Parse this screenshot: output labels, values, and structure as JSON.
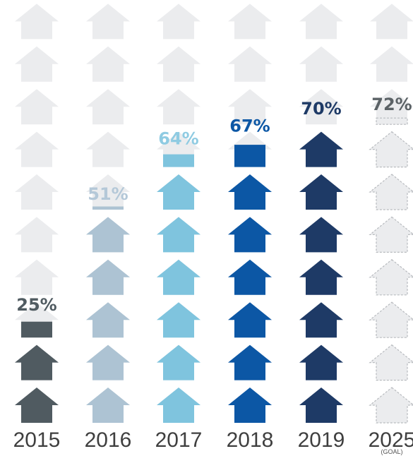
{
  "chart_data": {
    "type": "bar",
    "categories": [
      "2015",
      "2016",
      "2017",
      "2018",
      "2019",
      "2025"
    ],
    "category_notes": [
      "",
      "",
      "",
      "",
      "",
      "(GOAL)"
    ],
    "values": [
      25,
      51,
      64,
      67,
      70,
      72
    ],
    "value_labels": [
      "25%",
      "51%",
      "64%",
      "67%",
      "70%",
      "72%"
    ],
    "ylim": [
      0,
      100
    ],
    "unit": "%",
    "icons_per_column": 10,
    "icon": "house-icon",
    "colors": [
      "#505b61",
      "#adc3d3",
      "#7fc4de",
      "#0c57a5",
      "#1e3a66",
      "#ebecee"
    ],
    "label_colors": [
      "#505b61",
      "#b4c8d8",
      "#8fcbe2",
      "#0c57a5",
      "#1e3a66",
      "#5b6266"
    ],
    "empty_color": "#ebecee",
    "goal_outline_color": "#b8bbbf",
    "goal_index": 5
  }
}
